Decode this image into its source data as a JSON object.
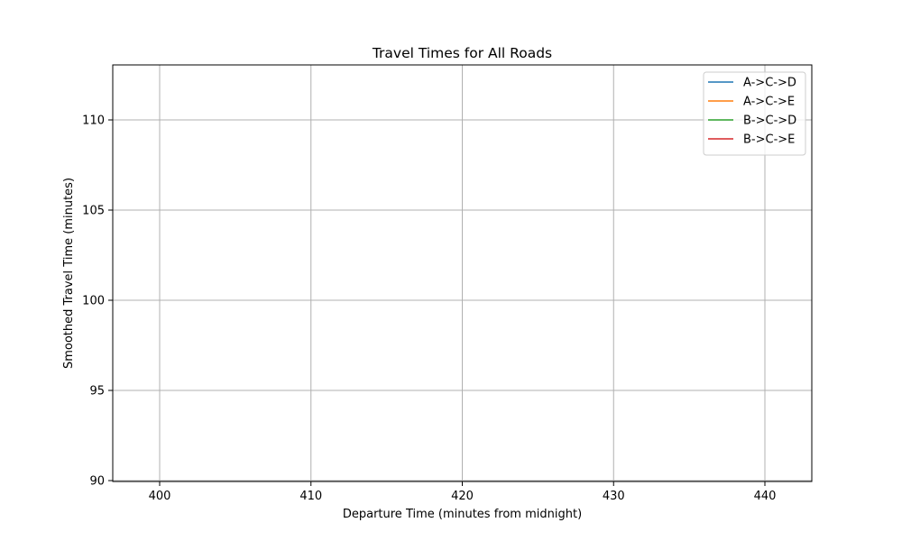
{
  "chart_data": {
    "type": "line",
    "title": "Travel Times for All Roads",
    "xlabel": "Departure Time (minutes from midnight)",
    "ylabel": "Smoothed Travel Time (minutes)",
    "xlim": [
      396.9,
      443.1
    ],
    "ylim": [
      89.95,
      113.05
    ],
    "xticks": [
      400,
      410,
      420,
      430,
      440
    ],
    "yticks": [
      90,
      95,
      100,
      105,
      110
    ],
    "grid": true,
    "legend_position": "top-right",
    "series": [
      {
        "name": "A->C->D",
        "color": "#1f77b4",
        "x": [],
        "y": []
      },
      {
        "name": "A->C->E",
        "color": "#ff7f0e",
        "x": [],
        "y": []
      },
      {
        "name": "B->C->D",
        "color": "#2ca02c",
        "x": [],
        "y": []
      },
      {
        "name": "B->C->E",
        "color": "#d62728",
        "x": [],
        "y": []
      }
    ]
  }
}
